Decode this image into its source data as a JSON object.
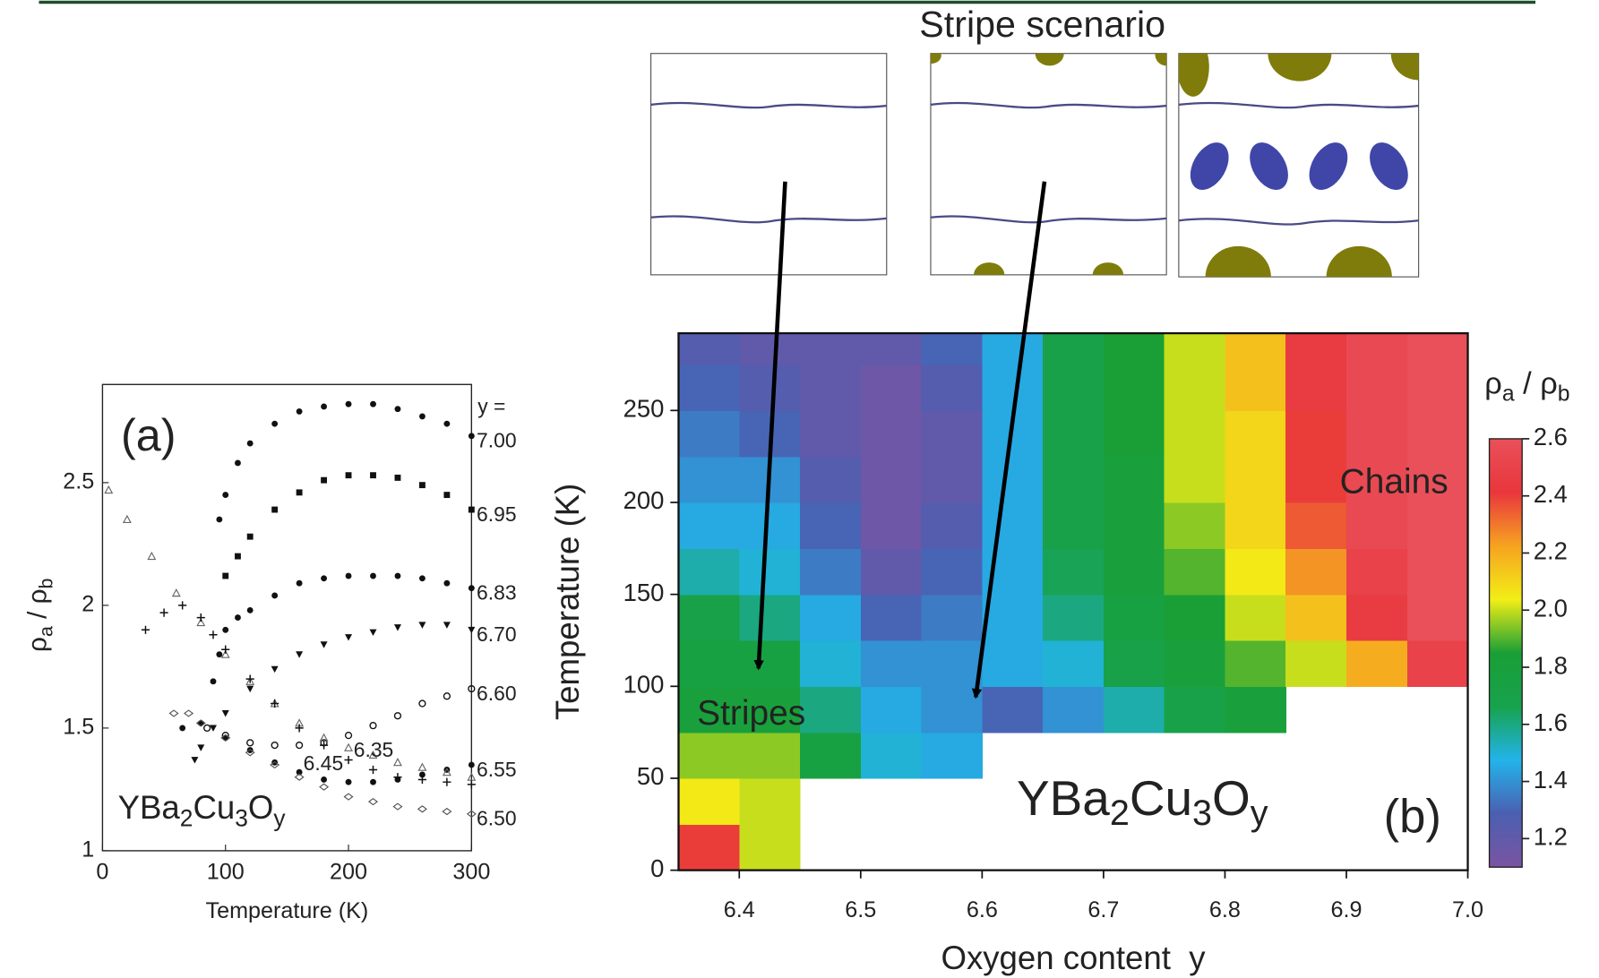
{
  "diagram": {
    "title": "Stripe scenario"
  },
  "chart_data": [
    {
      "type": "scatter",
      "panel_label": "(a)",
      "xlabel": "Temperature (K)",
      "ylabel_parts": [
        "ρ",
        "a",
        " / ρ",
        "b"
      ],
      "formula": [
        "YBa",
        "2",
        "Cu",
        "3",
        "O",
        "y"
      ],
      "legend_title": "y =",
      "xlim": [
        0,
        300
      ],
      "ylim": [
        1,
        2.9
      ],
      "xticks": [
        0,
        100,
        200,
        300
      ],
      "yticks": [
        1,
        1.5,
        2,
        2.5
      ],
      "series": [
        {
          "name": "7.00",
          "marker": "circle",
          "color": "#111",
          "x": [
            95,
            100,
            110,
            120,
            140,
            160,
            180,
            200,
            220,
            240,
            260,
            280,
            300
          ],
          "values": [
            2.35,
            2.45,
            2.58,
            2.66,
            2.74,
            2.79,
            2.81,
            2.82,
            2.82,
            2.8,
            2.77,
            2.74,
            2.69
          ]
        },
        {
          "name": "6.95",
          "marker": "square",
          "color": "#111",
          "x": [
            100,
            110,
            120,
            140,
            160,
            180,
            200,
            220,
            240,
            260,
            280,
            300
          ],
          "values": [
            2.12,
            2.2,
            2.28,
            2.39,
            2.46,
            2.51,
            2.53,
            2.53,
            2.52,
            2.49,
            2.45,
            2.39
          ]
        },
        {
          "name": "6.83",
          "marker": "circle",
          "color": "#111",
          "x": [
            90,
            95,
            100,
            110,
            120,
            140,
            160,
            180,
            200,
            220,
            240,
            260,
            280,
            300
          ],
          "values": [
            1.69,
            1.8,
            1.9,
            1.95,
            1.98,
            2.04,
            2.09,
            2.11,
            2.12,
            2.12,
            2.12,
            2.11,
            2.09,
            2.07
          ]
        },
        {
          "name": "6.70",
          "marker": "triangle-down",
          "color": "#111",
          "x": [
            75,
            80,
            90,
            100,
            120,
            140,
            160,
            180,
            200,
            220,
            240,
            260,
            280,
            300
          ],
          "values": [
            1.37,
            1.42,
            1.5,
            1.56,
            1.66,
            1.74,
            1.8,
            1.84,
            1.87,
            1.89,
            1.91,
            1.92,
            1.92,
            1.9
          ]
        },
        {
          "name": "6.60",
          "marker": "circle-open",
          "color": "#111",
          "x": [
            85,
            100,
            120,
            140,
            160,
            180,
            200,
            220,
            240,
            260,
            280,
            300
          ],
          "values": [
            1.5,
            1.47,
            1.44,
            1.43,
            1.43,
            1.44,
            1.47,
            1.51,
            1.55,
            1.6,
            1.63,
            1.66
          ]
        },
        {
          "name": "6.55",
          "marker": "circle",
          "color": "#111",
          "x": [
            65,
            80,
            100,
            120,
            140,
            160,
            180,
            200,
            220,
            240,
            260,
            280,
            300
          ],
          "values": [
            1.5,
            1.52,
            1.46,
            1.41,
            1.36,
            1.32,
            1.29,
            1.28,
            1.28,
            1.29,
            1.31,
            1.33,
            1.35
          ]
        },
        {
          "name": "6.50",
          "marker": "diamond-open",
          "color": "#555",
          "x": [
            58,
            70,
            80,
            100,
            120,
            140,
            160,
            180,
            200,
            220,
            240,
            260,
            280,
            300
          ],
          "values": [
            1.56,
            1.56,
            1.52,
            1.46,
            1.4,
            1.35,
            1.3,
            1.26,
            1.22,
            1.2,
            1.18,
            1.17,
            1.16,
            1.15
          ]
        },
        {
          "name": "6.45",
          "marker": "triangle-open",
          "color": "#666",
          "x": [
            5,
            20,
            40,
            60,
            80,
            100,
            120,
            140,
            160,
            180,
            200,
            220,
            240,
            260,
            280,
            300
          ],
          "values": [
            2.47,
            2.35,
            2.2,
            2.05,
            1.93,
            1.8,
            1.69,
            1.6,
            1.52,
            1.46,
            1.42,
            1.39,
            1.36,
            1.34,
            1.32,
            1.3
          ]
        },
        {
          "name": "6.35",
          "marker": "cross",
          "color": "#111",
          "x": [
            35,
            50,
            65,
            80,
            90,
            100,
            120,
            140,
            160,
            180,
            200,
            220,
            240,
            260,
            280,
            300
          ],
          "values": [
            1.9,
            1.97,
            2.0,
            1.95,
            1.88,
            1.82,
            1.7,
            1.6,
            1.5,
            1.43,
            1.37,
            1.33,
            1.3,
            1.29,
            1.28,
            1.27
          ]
        }
      ]
    },
    {
      "type": "heatmap",
      "panel_label": "(b)",
      "xlabel": "Oxygen content  y",
      "ylabel": "Temperature (K)",
      "formula": [
        "YBa",
        "2",
        "Cu",
        "3",
        "O",
        "y"
      ],
      "annotations": [
        "Stripes",
        "Chains"
      ],
      "colorbar_title_parts": [
        "ρ",
        "a",
        " / ρ",
        "b"
      ],
      "xlim": [
        6.35,
        7.0
      ],
      "ylim": [
        0,
        292
      ],
      "xticks": [
        6.4,
        6.5,
        6.6,
        6.7,
        6.8,
        6.9,
        {
          "value": 7,
          "label": "7.0"
        }
      ],
      "yticks": [
        0,
        50,
        100,
        150,
        200,
        250
      ],
      "zlim": [
        1.1,
        2.6
      ],
      "zticks": [
        1.2,
        1.4,
        1.6,
        1.8,
        {
          "value": 2,
          "label": "2.0"
        },
        2.2,
        2.4,
        2.6
      ],
      "colors": [
        "#7a54a2",
        "#4b5fb1",
        "#22b4ea",
        "#17a24d",
        "#1a9f36",
        "#f2ee16",
        "#f6a320",
        "#e9363c",
        "#e9505a"
      ],
      "x": [
        6.375,
        6.425,
        6.475,
        6.525,
        6.575,
        6.625,
        6.675,
        6.725,
        6.775,
        6.825,
        6.875,
        6.925,
        6.975
      ],
      "y": [
        12.5,
        37.5,
        62.5,
        87.5,
        112.5,
        137.5,
        162.5,
        187.5,
        212.5,
        237.5,
        262.5,
        287.5
      ],
      "z": [
        [
          2.4,
          2.0,
          null,
          null,
          null,
          null,
          null,
          null,
          null,
          null,
          null,
          null,
          null
        ],
        [
          2.05,
          2.0,
          null,
          null,
          null,
          null,
          null,
          null,
          null,
          null,
          null,
          null,
          null
        ],
        [
          1.95,
          1.95,
          1.75,
          1.5,
          1.45,
          null,
          null,
          null,
          null,
          null,
          null,
          null,
          null
        ],
        [
          1.8,
          1.8,
          1.6,
          1.45,
          1.4,
          1.3,
          1.4,
          1.55,
          1.7,
          1.8,
          null,
          null,
          null
        ],
        [
          1.75,
          1.75,
          1.5,
          1.4,
          1.4,
          1.45,
          1.5,
          1.7,
          1.8,
          1.9,
          2.0,
          2.2,
          2.5
        ],
        [
          1.7,
          1.6,
          1.45,
          1.3,
          1.35,
          1.45,
          1.6,
          1.75,
          1.85,
          2.0,
          2.15,
          2.45,
          2.6
        ],
        [
          1.55,
          1.5,
          1.35,
          1.2,
          1.3,
          1.45,
          1.65,
          1.8,
          1.9,
          2.05,
          2.25,
          2.5,
          2.6
        ],
        [
          1.45,
          1.45,
          1.3,
          1.15,
          1.25,
          1.45,
          1.7,
          1.8,
          1.95,
          2.1,
          2.35,
          2.55,
          2.6
        ],
        [
          1.4,
          1.4,
          1.25,
          1.15,
          1.2,
          1.45,
          1.7,
          1.8,
          2.0,
          2.1,
          2.4,
          2.55,
          2.6
        ],
        [
          1.35,
          1.3,
          1.2,
          1.15,
          1.2,
          1.45,
          1.7,
          1.85,
          2.0,
          2.1,
          2.4,
          2.55,
          2.6
        ],
        [
          1.3,
          1.25,
          1.2,
          1.15,
          1.25,
          1.45,
          1.7,
          1.85,
          2.0,
          2.15,
          2.45,
          2.55,
          2.6
        ],
        [
          1.25,
          1.2,
          1.2,
          1.2,
          1.3,
          1.45,
          1.7,
          1.85,
          2.0,
          2.15,
          2.45,
          2.55,
          2.6
        ]
      ]
    }
  ]
}
